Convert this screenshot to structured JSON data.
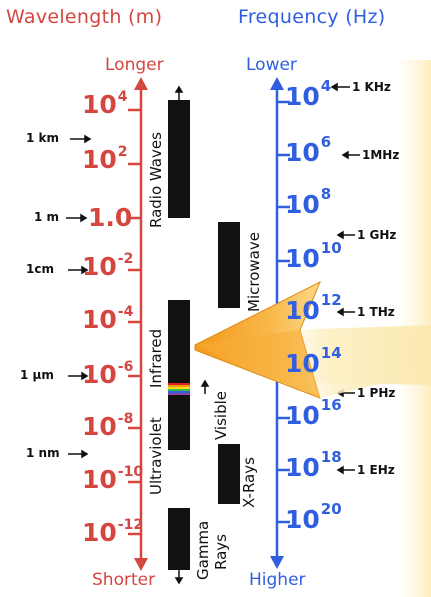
{
  "header": {
    "wavelength_title": "Wavelength (m)",
    "frequency_title": "Frequency (Hz)"
  },
  "wavelength_axis": {
    "top_label": "Longer",
    "bottom_label": "Shorter",
    "ticks": [
      {
        "base": "10",
        "exp": "4"
      },
      {
        "base": "10",
        "exp": "2"
      },
      {
        "base": "1.0",
        "exp": ""
      },
      {
        "base": "10",
        "exp": "-2"
      },
      {
        "base": "10",
        "exp": "-4"
      },
      {
        "base": "10",
        "exp": "-6"
      },
      {
        "base": "10",
        "exp": "-8"
      },
      {
        "base": "10",
        "exp": "-10"
      },
      {
        "base": "10",
        "exp": "-12"
      }
    ],
    "annotations": [
      "1 km",
      "1 m",
      "1cm",
      "1 µm",
      "1 nm"
    ]
  },
  "frequency_axis": {
    "top_label": "Lower",
    "bottom_label": "Higher",
    "ticks": [
      {
        "base": "10",
        "exp": "4"
      },
      {
        "base": "10",
        "exp": "6"
      },
      {
        "base": "10",
        "exp": "8"
      },
      {
        "base": "10",
        "exp": "10"
      },
      {
        "base": "10",
        "exp": "12"
      },
      {
        "base": "10",
        "exp": "14"
      },
      {
        "base": "10",
        "exp": "16"
      },
      {
        "base": "10",
        "exp": "18"
      },
      {
        "base": "10",
        "exp": "20"
      }
    ],
    "annotations": [
      "1 KHz",
      "1MHz",
      "1 GHz",
      "1 THz",
      "1 PHz",
      "1 EHz"
    ]
  },
  "bands": {
    "radio": "Radio Waves",
    "microwave": "Microwave",
    "infrared": "Infrared",
    "ultraviolet": "Ultraviolet",
    "visible": "Visible",
    "xrays": "X-Rays",
    "gamma_line1": "Gamma",
    "gamma_line2": "Rays"
  },
  "colors": {
    "wavelength": "#d4463f",
    "frequency": "#2f5fe0",
    "band": "#111111",
    "arrow": "#f5a623",
    "beam": "#fbeec0"
  }
}
